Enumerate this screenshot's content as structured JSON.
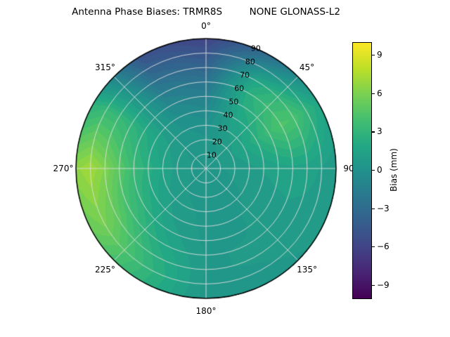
{
  "chart_data": {
    "type": "heatmap",
    "projection": "polar",
    "title": "Antenna Phase Biases: TRMR8S         NONE GLONASS-L2",
    "units": "mm",
    "azimuth_deg": [
      0,
      30,
      60,
      90,
      120,
      150,
      180,
      210,
      240,
      270,
      300,
      330
    ],
    "zenith_deg": [
      0,
      10,
      20,
      30,
      40,
      50,
      60,
      70,
      80,
      90
    ],
    "bias_mm": [
      [
        0.6,
        0.5,
        0.3,
        0.0,
        -0.6,
        -1.4,
        -2.4,
        -3.6,
        -4.8,
        -6.0
      ],
      [
        0.6,
        0.7,
        0.9,
        1.2,
        1.6,
        2.2,
        2.6,
        1.8,
        -0.5,
        -3.0
      ],
      [
        0.6,
        0.8,
        1.2,
        1.8,
        2.6,
        3.6,
        4.4,
        4.2,
        3.0,
        1.8
      ],
      [
        0.6,
        0.7,
        0.9,
        1.1,
        1.3,
        1.5,
        1.6,
        1.5,
        1.2,
        0.9
      ],
      [
        0.6,
        0.6,
        0.7,
        0.8,
        0.9,
        1.0,
        1.1,
        1.0,
        0.9,
        0.8
      ],
      [
        0.5,
        0.5,
        0.6,
        0.6,
        0.7,
        0.7,
        0.8,
        0.8,
        0.7,
        0.6
      ],
      [
        0.5,
        0.5,
        0.5,
        0.6,
        0.6,
        0.6,
        0.7,
        0.7,
        0.6,
        0.5
      ],
      [
        0.5,
        0.6,
        0.7,
        0.9,
        1.1,
        1.5,
        2.0,
        2.6,
        3.0,
        2.8
      ],
      [
        0.6,
        0.7,
        0.9,
        1.3,
        1.9,
        2.8,
        3.8,
        5.0,
        5.8,
        5.2
      ],
      [
        0.6,
        0.8,
        1.1,
        1.7,
        2.5,
        3.5,
        4.8,
        6.2,
        7.2,
        6.6
      ],
      [
        0.6,
        0.7,
        0.9,
        1.3,
        1.8,
        2.4,
        3.0,
        3.4,
        3.4,
        2.6
      ],
      [
        0.6,
        0.6,
        0.5,
        0.3,
        -0.1,
        -0.7,
        -1.5,
        -2.6,
        -3.8,
        -5.0
      ]
    ],
    "angular_ticks": [
      "0°",
      "45°",
      "90",
      "135°",
      "180°",
      "225°",
      "270°",
      "315°"
    ],
    "radial_ticks": [
      "10",
      "20",
      "30",
      "40",
      "50",
      "60",
      "70",
      "80",
      "90"
    ],
    "radial_label_azimuth_deg": 22.5,
    "grid": {
      "angular_step_deg": 45,
      "radial_step_deg": 10,
      "color": "#dedede"
    },
    "colorbar": {
      "label": "Bias (mm)",
      "tick_values": [
        9,
        6,
        3,
        0,
        -3,
        -6,
        -9
      ],
      "tick_labels": [
        "9",
        "6",
        "3",
        "0",
        "−3",
        "−6",
        "−9"
      ],
      "vmin": -10,
      "vmax": 10,
      "colormap": "viridis",
      "stops": [
        [
          0.0,
          "#440154"
        ],
        [
          0.1,
          "#482475"
        ],
        [
          0.2,
          "#414487"
        ],
        [
          0.3,
          "#355f8d"
        ],
        [
          0.4,
          "#2a788e"
        ],
        [
          0.5,
          "#21918c"
        ],
        [
          0.6,
          "#22a884"
        ],
        [
          0.7,
          "#44bf70"
        ],
        [
          0.8,
          "#7ad151"
        ],
        [
          0.9,
          "#bddf26"
        ],
        [
          1.0,
          "#fde725"
        ]
      ]
    }
  }
}
